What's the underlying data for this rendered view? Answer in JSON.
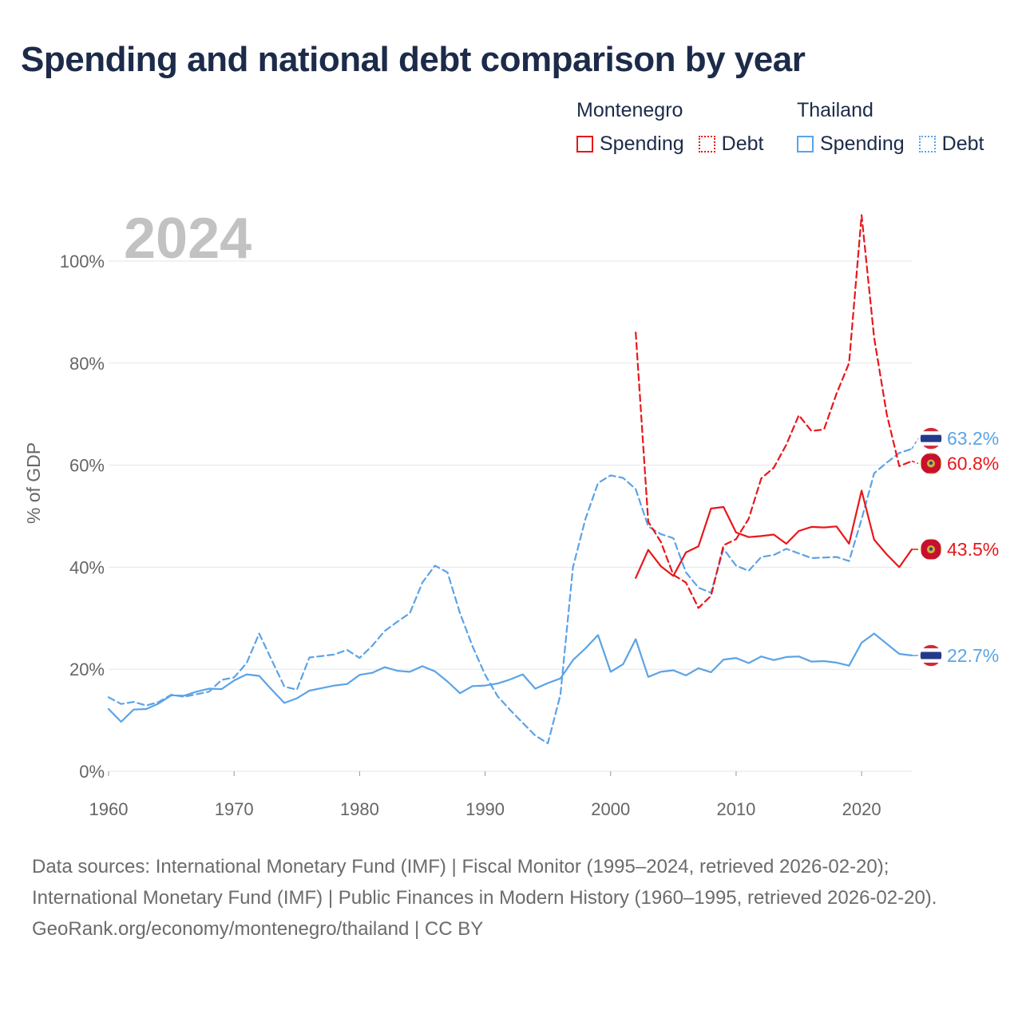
{
  "title": "Spending and national debt comparison by year",
  "legend": {
    "groups": [
      {
        "name": "Montenegro",
        "color": "#e8171c",
        "items": [
          {
            "label": "Spending",
            "style": "solid"
          },
          {
            "label": "Debt",
            "style": "dotted"
          }
        ]
      },
      {
        "name": "Thailand",
        "color": "#5ba3e6",
        "items": [
          {
            "label": "Spending",
            "style": "solid"
          },
          {
            "label": "Debt",
            "style": "dotted"
          }
        ]
      }
    ]
  },
  "chart_data": {
    "type": "line",
    "title": "Spending and national debt comparison by year",
    "current_year": "2024",
    "xlabel": "",
    "ylabel": "% of GDP",
    "xlim": [
      1960,
      2024
    ],
    "ylim": [
      0,
      110
    ],
    "x_ticks": [
      1960,
      1970,
      1980,
      1990,
      2000,
      2010,
      2020
    ],
    "y_ticks": [
      0,
      20,
      40,
      60,
      80,
      100
    ],
    "y_tick_labels": [
      "0%",
      "20%",
      "40%",
      "60%",
      "80%",
      "100%"
    ],
    "grid": true,
    "series": [
      {
        "name": "Thailand Spending",
        "country": "Thailand",
        "measure": "Spending",
        "color": "#5ba3e6",
        "dash": "solid",
        "x": [
          1960,
          1961,
          1962,
          1963,
          1964,
          1965,
          1966,
          1967,
          1968,
          1969,
          1970,
          1971,
          1972,
          1973,
          1974,
          1975,
          1976,
          1977,
          1978,
          1979,
          1980,
          1981,
          1982,
          1983,
          1984,
          1985,
          1986,
          1987,
          1988,
          1989,
          1990,
          1991,
          1992,
          1993,
          1994,
          1995,
          1996,
          1997,
          1998,
          1999,
          2000,
          2001,
          2002,
          2003,
          2004,
          2005,
          2006,
          2007,
          2008,
          2009,
          2010,
          2011,
          2012,
          2013,
          2014,
          2015,
          2016,
          2017,
          2018,
          2019,
          2020,
          2021,
          2022,
          2023,
          2024
        ],
        "values": [
          12.2,
          9.7,
          12.1,
          12.2,
          13.3,
          14.9,
          14.8,
          15.6,
          16.2,
          16.1,
          17.8,
          19.0,
          18.7,
          16.0,
          13.4,
          14.3,
          15.8,
          16.3,
          16.8,
          17.1,
          18.9,
          19.3,
          20.4,
          19.7,
          19.5,
          20.6,
          19.6,
          17.6,
          15.3,
          16.7,
          16.8,
          17.2,
          18.0,
          19.0,
          16.2,
          17.3,
          18.2,
          21.8,
          24.1,
          26.7,
          19.5,
          21.0,
          25.9,
          18.5,
          19.5,
          19.8,
          18.8,
          20.2,
          19.4,
          21.9,
          22.2,
          21.2,
          22.5,
          21.8,
          22.4,
          22.5,
          21.5,
          21.6,
          21.3,
          20.7,
          25.2,
          27.0,
          25.0,
          23.0,
          22.7
        ],
        "end_label": "22.7%"
      },
      {
        "name": "Thailand Debt",
        "country": "Thailand",
        "measure": "Debt",
        "color": "#5ba3e6",
        "dash": "dashed",
        "x": [
          1960,
          1961,
          1962,
          1963,
          1964,
          1965,
          1966,
          1967,
          1968,
          1969,
          1970,
          1971,
          1972,
          1973,
          1974,
          1975,
          1976,
          1977,
          1978,
          1979,
          1980,
          1981,
          1982,
          1983,
          1984,
          1985,
          1986,
          1987,
          1988,
          1989,
          1990,
          1991,
          1992,
          1993,
          1994,
          1995,
          1996,
          1997,
          1998,
          1999,
          2000,
          2001,
          2002,
          2003,
          2004,
          2005,
          2006,
          2007,
          2008,
          2009,
          2010,
          2011,
          2012,
          2013,
          2014,
          2015,
          2016,
          2017,
          2018,
          2019,
          2020,
          2021,
          2022,
          2023,
          2024
        ],
        "values": [
          14.5,
          13.2,
          13.6,
          12.9,
          13.6,
          15.0,
          14.6,
          15.1,
          15.6,
          17.9,
          18.4,
          21.2,
          27.0,
          21.8,
          16.6,
          16.0,
          22.3,
          22.6,
          22.9,
          23.8,
          22.2,
          24.6,
          27.5,
          29.3,
          31.0,
          37.0,
          40.3,
          39.0,
          31.0,
          24.5,
          18.9,
          14.7,
          12.0,
          9.5,
          7.0,
          5.5,
          15.0,
          40.0,
          49.5,
          56.5,
          58.0,
          57.5,
          55.3,
          48.0,
          46.5,
          45.7,
          39.0,
          36.0,
          35.0,
          43.6,
          40.3,
          39.3,
          42.0,
          42.4,
          43.6,
          42.7,
          41.8,
          41.9,
          42.0,
          41.2,
          49.4,
          58.4,
          60.5,
          62.4,
          63.2
        ],
        "end_label": "63.2%"
      },
      {
        "name": "Montenegro Spending",
        "country": "Montenegro",
        "measure": "Spending",
        "color": "#e8171c",
        "dash": "solid",
        "x": [
          2002,
          2003,
          2004,
          2005,
          2006,
          2007,
          2008,
          2009,
          2010,
          2011,
          2012,
          2013,
          2014,
          2015,
          2016,
          2017,
          2018,
          2019,
          2020,
          2021,
          2022,
          2023,
          2024
        ],
        "values": [
          37.9,
          43.4,
          40.2,
          38.3,
          42.9,
          44.1,
          51.5,
          51.8,
          46.8,
          45.9,
          46.1,
          46.4,
          44.6,
          47.1,
          47.9,
          47.8,
          48.0,
          44.6,
          55.0,
          45.4,
          42.5,
          40.0,
          43.5
        ],
        "end_label": "43.5%"
      },
      {
        "name": "Montenegro Debt",
        "country": "Montenegro",
        "measure": "Debt",
        "color": "#e8171c",
        "dash": "dashed",
        "x": [
          2002,
          2003,
          2004,
          2005,
          2006,
          2007,
          2008,
          2009,
          2010,
          2011,
          2012,
          2013,
          2014,
          2015,
          2016,
          2017,
          2018,
          2019,
          2020,
          2021,
          2022,
          2023,
          2024
        ],
        "values": [
          86.0,
          48.9,
          45.0,
          38.5,
          37.0,
          32.0,
          34.4,
          44.3,
          45.5,
          49.5,
          57.4,
          59.5,
          64.0,
          69.8,
          66.7,
          67.0,
          74.0,
          80.0,
          109.0,
          85.0,
          70.0,
          59.8,
          60.8
        ],
        "end_label": "60.8%"
      }
    ]
  },
  "sources": {
    "line1": "Data sources: International Monetary Fund (IMF) | Fiscal Monitor (1995–2024, retrieved 2026-02-20); International Monetary Fund (IMF) | Public Finances in Modern History (1960–1995, retrieved 2026-02-20).",
    "line2": "GeoRank.org/economy/montenegro/thailand | CC BY"
  },
  "flag_icons": {
    "Thailand": "thailand-flag-icon",
    "Montenegro": "montenegro-flag-icon"
  }
}
